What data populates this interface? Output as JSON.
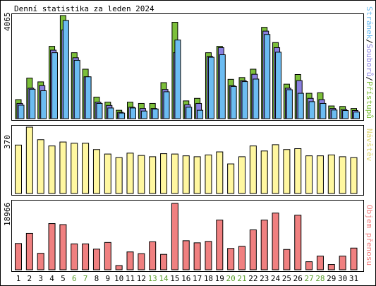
{
  "title": "Denní statistika za leden 2024",
  "colors": {
    "hits": "#7cbf3a",
    "files": "#8a80e0",
    "pages": "#6cbcf2",
    "visits": "#fff7a0",
    "kbytes": "#f08080",
    "weekend": "#5c9e2e",
    "weekday": "#000000"
  },
  "panels": {
    "top": {
      "max_label": "4065"
    },
    "middle": {
      "max_label": "370"
    },
    "bottom": {
      "max_label": "18966"
    }
  },
  "right_labels": {
    "hits": "Přístupů",
    "files": "Souborů",
    "pages": "Stránek",
    "sep": "/",
    "visits": "Návštěv",
    "kbytes": "Objem přenosu"
  },
  "chart_data": [
    {
      "type": "bar",
      "title": "Denní statistika za leden 2024",
      "categories": [
        "1",
        "2",
        "3",
        "4",
        "5",
        "6",
        "7",
        "8",
        "9",
        "10",
        "11",
        "12",
        "13",
        "14",
        "15",
        "16",
        "17",
        "18",
        "19",
        "20",
        "21",
        "22",
        "23",
        "24",
        "25",
        "26",
        "27",
        "28",
        "29",
        "30",
        "31"
      ],
      "weekend_days": [
        "6",
        "7",
        "13",
        "14",
        "20",
        "21",
        "27",
        "28"
      ],
      "ylim": [
        0,
        4065
      ],
      "series": [
        {
          "name": "Přístupů",
          "values": [
            750,
            1600,
            1450,
            2850,
            4065,
            2600,
            1950,
            850,
            650,
            330,
            650,
            600,
            600,
            1420,
            3800,
            700,
            800,
            2600,
            2850,
            1550,
            1620,
            1950,
            3600,
            3000,
            1360,
            1740,
            1000,
            1020,
            500,
            480,
            400
          ]
        },
        {
          "name": "Souborů",
          "values": [
            600,
            1200,
            1300,
            2700,
            3500,
            2400,
            1650,
            650,
            520,
            250,
            450,
            400,
            400,
            1150,
            2600,
            550,
            600,
            2450,
            2800,
            1300,
            1500,
            1750,
            3450,
            2800,
            1200,
            1500,
            800,
            750,
            400,
            360,
            320
          ]
        },
        {
          "name": "Stránek",
          "values": [
            530,
            1160,
            1100,
            2600,
            3870,
            2300,
            1650,
            600,
            420,
            220,
            420,
            300,
            380,
            1060,
            3100,
            450,
            330,
            2420,
            2520,
            1270,
            1460,
            1560,
            3320,
            2620,
            1140,
            1000,
            670,
            600,
            340,
            320,
            260
          ]
        }
      ]
    },
    {
      "type": "bar",
      "categories": [
        "1",
        "2",
        "3",
        "4",
        "5",
        "6",
        "7",
        "8",
        "9",
        "10",
        "11",
        "12",
        "13",
        "14",
        "15",
        "16",
        "17",
        "18",
        "19",
        "20",
        "21",
        "22",
        "23",
        "24",
        "25",
        "26",
        "27",
        "28",
        "29",
        "30",
        "31"
      ],
      "ylim": [
        0,
        370
      ],
      "series": [
        {
          "name": "Návštěv",
          "values": [
            270,
            370,
            300,
            265,
            287,
            280,
            280,
            245,
            220,
            200,
            225,
            212,
            205,
            222,
            220,
            210,
            205,
            215,
            232,
            165,
            205,
            265,
            237,
            272,
            245,
            250,
            210,
            210,
            215,
            205,
            200
          ]
        }
      ]
    },
    {
      "type": "bar",
      "categories": [
        "1",
        "2",
        "3",
        "4",
        "5",
        "6",
        "7",
        "8",
        "9",
        "10",
        "11",
        "12",
        "13",
        "14",
        "15",
        "16",
        "17",
        "18",
        "19",
        "20",
        "21",
        "22",
        "23",
        "24",
        "25",
        "26",
        "27",
        "28",
        "29",
        "30",
        "31"
      ],
      "ylim": [
        0,
        18966
      ],
      "series": [
        {
          "name": "Objem přenosu",
          "values": [
            7500,
            10400,
            4700,
            13200,
            12900,
            7400,
            7400,
            5900,
            7800,
            1200,
            5100,
            4600,
            8000,
            4400,
            18966,
            8300,
            7700,
            8100,
            14200,
            6100,
            6700,
            11400,
            14200,
            16200,
            5800,
            15600,
            2300,
            3900,
            1500,
            3900,
            6200
          ]
        }
      ]
    }
  ]
}
